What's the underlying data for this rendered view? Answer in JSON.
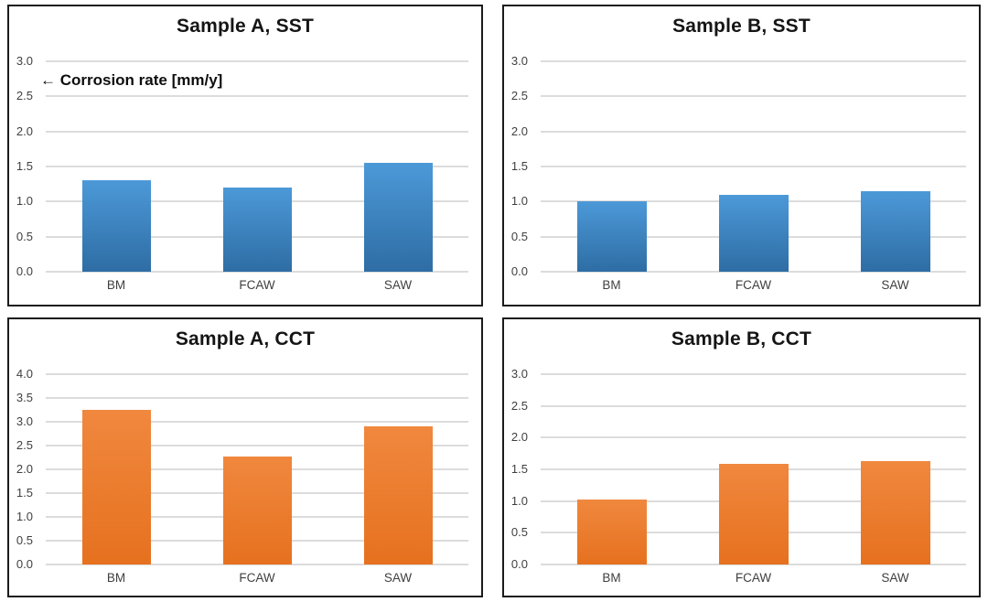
{
  "figure": {
    "description": "Four bar charts of corrosion rate by weld type",
    "y_axis_annotation": "← Corrosion rate [mm/y]"
  },
  "colors": {
    "background": "#ffffff",
    "panel_border": "#1b1b1b",
    "grid": "#dcdcdc",
    "tick_text": "#3f3f3f",
    "title_text": "#151515",
    "annotation_text": "#0e0e0e",
    "blue_top": "#4c99d8",
    "blue_bottom": "#2e6da4",
    "orange_top": "#f0883e",
    "orange_bottom": "#e6711f"
  },
  "chart_data": [
    {
      "type": "bar",
      "title": "Sample A, SST",
      "categories": [
        "BM",
        "FCAW",
        "SAW"
      ],
      "values": [
        1.3,
        1.2,
        1.55
      ],
      "ylim": [
        0.0,
        3.0
      ],
      "ytick_step": 0.5,
      "grid": true,
      "color": "blue",
      "annotation": "← Corrosion rate [mm/y]",
      "ylabel": "Corrosion rate [mm/y]",
      "xlabel": ""
    },
    {
      "type": "bar",
      "title": "Sample B, SST",
      "categories": [
        "BM",
        "FCAW",
        "SAW"
      ],
      "values": [
        1.0,
        1.1,
        1.15
      ],
      "ylim": [
        0.0,
        3.0
      ],
      "ytick_step": 0.5,
      "grid": true,
      "color": "blue",
      "ylabel": "Corrosion rate [mm/y]",
      "xlabel": ""
    },
    {
      "type": "bar",
      "title": "Sample A, CCT",
      "categories": [
        "BM",
        "FCAW",
        "SAW"
      ],
      "values": [
        3.25,
        2.27,
        2.9
      ],
      "ylim": [
        0.0,
        4.0
      ],
      "ytick_step": 0.5,
      "grid": true,
      "color": "orange",
      "ylabel": "Corrosion rate [mm/y]",
      "xlabel": ""
    },
    {
      "type": "bar",
      "title": "Sample B, CCT",
      "categories": [
        "BM",
        "FCAW",
        "SAW"
      ],
      "values": [
        1.02,
        1.58,
        1.63
      ],
      "ylim": [
        0.0,
        3.0
      ],
      "ytick_step": 0.5,
      "grid": true,
      "color": "orange",
      "ylabel": "Corrosion rate [mm/y]",
      "xlabel": ""
    }
  ]
}
